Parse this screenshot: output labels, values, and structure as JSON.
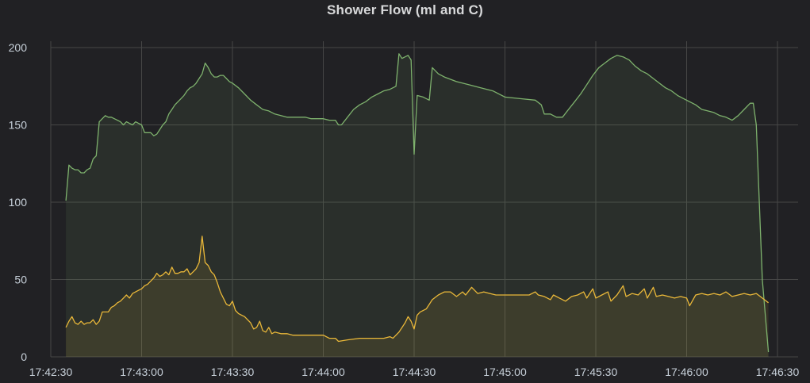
{
  "panel": {
    "title": "Shower Flow (ml and C)"
  },
  "colors": {
    "background": "#212124",
    "grid": "#464646",
    "tick_text": "#c7d0d9",
    "series_flow": "#7eb26d",
    "series_temp": "#eab839"
  },
  "chart_data": {
    "type": "area",
    "title": "Shower Flow (ml and C)",
    "xlabel": "",
    "ylabel": "",
    "ylim": [
      0,
      200
    ],
    "xlim": [
      "17:42:30",
      "17:46:30"
    ],
    "grid": true,
    "legend": "none",
    "x_ticks": [
      "17:42:30",
      "17:43:00",
      "17:43:30",
      "17:44:00",
      "17:44:30",
      "17:45:00",
      "17:45:30",
      "17:46:00",
      "17:46:30"
    ],
    "y_ticks": [
      0,
      50,
      100,
      150,
      200
    ],
    "series": [
      {
        "color": "#7eb26d",
        "points": [
          [
            "17:42:35",
            101
          ],
          [
            "17:42:36",
            124
          ],
          [
            "17:42:37",
            122
          ],
          [
            "17:42:38",
            121
          ],
          [
            "17:42:39",
            121
          ],
          [
            "17:42:40",
            119
          ],
          [
            "17:42:41",
            119
          ],
          [
            "17:42:42",
            121
          ],
          [
            "17:42:43",
            122
          ],
          [
            "17:42:44",
            128
          ],
          [
            "17:42:45",
            130
          ],
          [
            "17:42:46",
            152
          ],
          [
            "17:42:47",
            154
          ],
          [
            "17:42:48",
            156
          ],
          [
            "17:42:49",
            155
          ],
          [
            "17:42:50",
            155
          ],
          [
            "17:42:51",
            154
          ],
          [
            "17:42:52",
            153
          ],
          [
            "17:42:53",
            152
          ],
          [
            "17:42:54",
            150
          ],
          [
            "17:42:55",
            152
          ],
          [
            "17:42:56",
            151
          ],
          [
            "17:42:57",
            150
          ],
          [
            "17:42:58",
            152
          ],
          [
            "17:42:59",
            151
          ],
          [
            "17:43:00",
            150
          ],
          [
            "17:43:01",
            145
          ],
          [
            "17:43:02",
            145
          ],
          [
            "17:43:03",
            145
          ],
          [
            "17:43:04",
            143
          ],
          [
            "17:43:05",
            144
          ],
          [
            "17:43:06",
            147
          ],
          [
            "17:43:07",
            150
          ],
          [
            "17:43:08",
            152
          ],
          [
            "17:43:09",
            157
          ],
          [
            "17:43:10",
            160
          ],
          [
            "17:43:11",
            163
          ],
          [
            "17:43:12",
            165
          ],
          [
            "17:43:13",
            167
          ],
          [
            "17:43:14",
            169
          ],
          [
            "17:43:15",
            172
          ],
          [
            "17:43:16",
            174
          ],
          [
            "17:43:17",
            175
          ],
          [
            "17:43:18",
            177
          ],
          [
            "17:43:19",
            180
          ],
          [
            "17:43:20",
            183
          ],
          [
            "17:43:21",
            190
          ],
          [
            "17:43:22",
            187
          ],
          [
            "17:43:23",
            183
          ],
          [
            "17:43:24",
            181
          ],
          [
            "17:43:25",
            181
          ],
          [
            "17:43:26",
            182
          ],
          [
            "17:43:27",
            182
          ],
          [
            "17:43:28",
            180
          ],
          [
            "17:43:29",
            178
          ],
          [
            "17:43:30",
            177
          ],
          [
            "17:43:32",
            174
          ],
          [
            "17:43:34",
            170
          ],
          [
            "17:43:36",
            166
          ],
          [
            "17:43:38",
            163
          ],
          [
            "17:43:40",
            160
          ],
          [
            "17:43:42",
            159
          ],
          [
            "17:43:44",
            157
          ],
          [
            "17:43:46",
            156
          ],
          [
            "17:43:48",
            155
          ],
          [
            "17:43:50",
            155
          ],
          [
            "17:43:52",
            155
          ],
          [
            "17:43:54",
            155
          ],
          [
            "17:43:56",
            154
          ],
          [
            "17:43:58",
            154
          ],
          [
            "17:44:00",
            154
          ],
          [
            "17:44:02",
            153
          ],
          [
            "17:44:04",
            153
          ],
          [
            "17:44:05",
            150
          ],
          [
            "17:44:06",
            150
          ],
          [
            "17:44:08",
            155
          ],
          [
            "17:44:10",
            160
          ],
          [
            "17:44:12",
            163
          ],
          [
            "17:44:14",
            165
          ],
          [
            "17:44:16",
            168
          ],
          [
            "17:44:18",
            170
          ],
          [
            "17:44:20",
            172
          ],
          [
            "17:44:22",
            173
          ],
          [
            "17:44:24",
            175
          ],
          [
            "17:44:25",
            196
          ],
          [
            "17:44:26",
            193
          ],
          [
            "17:44:27",
            194
          ],
          [
            "17:44:28",
            195
          ],
          [
            "17:44:29",
            192
          ],
          [
            "17:44:30",
            131
          ],
          [
            "17:44:31",
            169
          ],
          [
            "17:44:33",
            168
          ],
          [
            "17:44:35",
            166
          ],
          [
            "17:44:36",
            187
          ],
          [
            "17:44:38",
            183
          ],
          [
            "17:44:40",
            181
          ],
          [
            "17:44:44",
            178
          ],
          [
            "17:44:48",
            176
          ],
          [
            "17:44:52",
            174
          ],
          [
            "17:44:56",
            172
          ],
          [
            "17:45:00",
            168
          ],
          [
            "17:45:05",
            167
          ],
          [
            "17:45:10",
            166
          ],
          [
            "17:45:12",
            163
          ],
          [
            "17:45:13",
            157
          ],
          [
            "17:45:15",
            157
          ],
          [
            "17:45:17",
            155
          ],
          [
            "17:45:19",
            155
          ],
          [
            "17:45:21",
            160
          ],
          [
            "17:45:23",
            165
          ],
          [
            "17:45:25",
            170
          ],
          [
            "17:45:27",
            176
          ],
          [
            "17:45:29",
            182
          ],
          [
            "17:45:31",
            187
          ],
          [
            "17:45:33",
            190
          ],
          [
            "17:45:35",
            193
          ],
          [
            "17:45:37",
            195
          ],
          [
            "17:45:39",
            194
          ],
          [
            "17:45:41",
            192
          ],
          [
            "17:45:43",
            188
          ],
          [
            "17:45:45",
            185
          ],
          [
            "17:45:47",
            183
          ],
          [
            "17:45:49",
            180
          ],
          [
            "17:45:51",
            177
          ],
          [
            "17:45:53",
            174
          ],
          [
            "17:45:55",
            172
          ],
          [
            "17:45:57",
            169
          ],
          [
            "17:45:59",
            167
          ],
          [
            "17:46:01",
            165
          ],
          [
            "17:46:03",
            163
          ],
          [
            "17:46:05",
            160
          ],
          [
            "17:46:07",
            159
          ],
          [
            "17:46:09",
            158
          ],
          [
            "17:46:11",
            156
          ],
          [
            "17:46:13",
            155
          ],
          [
            "17:46:15",
            153
          ],
          [
            "17:46:17",
            156
          ],
          [
            "17:46:19",
            160
          ],
          [
            "17:46:21",
            164
          ],
          [
            "17:46:22",
            164
          ],
          [
            "17:46:23",
            150
          ],
          [
            "17:46:25",
            50
          ],
          [
            "17:46:27",
            3
          ]
        ]
      },
      {
        "color": "#eab839",
        "points": [
          [
            "17:42:35",
            19
          ],
          [
            "17:42:36",
            23
          ],
          [
            "17:42:37",
            26
          ],
          [
            "17:42:38",
            22
          ],
          [
            "17:42:39",
            21
          ],
          [
            "17:42:40",
            23
          ],
          [
            "17:42:41",
            21
          ],
          [
            "17:42:42",
            22
          ],
          [
            "17:42:43",
            22
          ],
          [
            "17:42:44",
            24
          ],
          [
            "17:42:45",
            21
          ],
          [
            "17:42:46",
            23
          ],
          [
            "17:42:47",
            29
          ],
          [
            "17:42:48",
            29
          ],
          [
            "17:42:49",
            29
          ],
          [
            "17:42:50",
            32
          ],
          [
            "17:42:51",
            33
          ],
          [
            "17:42:52",
            35
          ],
          [
            "17:42:53",
            36
          ],
          [
            "17:42:54",
            38
          ],
          [
            "17:42:55",
            40
          ],
          [
            "17:42:56",
            38
          ],
          [
            "17:42:57",
            41
          ],
          [
            "17:42:58",
            42
          ],
          [
            "17:42:59",
            43
          ],
          [
            "17:43:00",
            44
          ],
          [
            "17:43:01",
            46
          ],
          [
            "17:43:02",
            47
          ],
          [
            "17:43:03",
            49
          ],
          [
            "17:43:04",
            51
          ],
          [
            "17:43:05",
            54
          ],
          [
            "17:43:06",
            52
          ],
          [
            "17:43:07",
            53
          ],
          [
            "17:43:08",
            55
          ],
          [
            "17:43:09",
            53
          ],
          [
            "17:43:10",
            58
          ],
          [
            "17:43:11",
            54
          ],
          [
            "17:43:12",
            54
          ],
          [
            "17:43:13",
            55
          ],
          [
            "17:43:14",
            55
          ],
          [
            "17:43:15",
            57
          ],
          [
            "17:43:16",
            53
          ],
          [
            "17:43:17",
            55
          ],
          [
            "17:43:18",
            57
          ],
          [
            "17:43:19",
            61
          ],
          [
            "17:43:20",
            78
          ],
          [
            "17:43:21",
            61
          ],
          [
            "17:43:22",
            59
          ],
          [
            "17:43:23",
            55
          ],
          [
            "17:43:24",
            53
          ],
          [
            "17:43:25",
            48
          ],
          [
            "17:43:26",
            42
          ],
          [
            "17:43:27",
            38
          ],
          [
            "17:43:28",
            34
          ],
          [
            "17:43:29",
            33
          ],
          [
            "17:43:30",
            36
          ],
          [
            "17:43:31",
            30
          ],
          [
            "17:43:32",
            28
          ],
          [
            "17:43:33",
            27
          ],
          [
            "17:43:34",
            26
          ],
          [
            "17:43:35",
            24
          ],
          [
            "17:43:36",
            22
          ],
          [
            "17:43:37",
            18
          ],
          [
            "17:43:38",
            19
          ],
          [
            "17:43:39",
            23
          ],
          [
            "17:43:40",
            17
          ],
          [
            "17:43:41",
            16
          ],
          [
            "17:43:42",
            19
          ],
          [
            "17:43:43",
            15
          ],
          [
            "17:43:44",
            16
          ],
          [
            "17:43:46",
            15
          ],
          [
            "17:43:48",
            15
          ],
          [
            "17:43:50",
            14
          ],
          [
            "17:43:55",
            14
          ],
          [
            "17:44:00",
            14
          ],
          [
            "17:44:02",
            12
          ],
          [
            "17:44:04",
            12
          ],
          [
            "17:44:05",
            10
          ],
          [
            "17:44:08",
            11
          ],
          [
            "17:44:12",
            12
          ],
          [
            "17:44:16",
            12
          ],
          [
            "17:44:20",
            12
          ],
          [
            "17:44:22",
            13
          ],
          [
            "17:44:23",
            12
          ],
          [
            "17:44:25",
            16
          ],
          [
            "17:44:27",
            22
          ],
          [
            "17:44:28",
            26
          ],
          [
            "17:44:29",
            23
          ],
          [
            "17:44:30",
            18
          ],
          [
            "17:44:31",
            27
          ],
          [
            "17:44:32",
            29
          ],
          [
            "17:44:34",
            31
          ],
          [
            "17:44:36",
            37
          ],
          [
            "17:44:38",
            40
          ],
          [
            "17:44:40",
            42
          ],
          [
            "17:44:42",
            42
          ],
          [
            "17:44:44",
            39
          ],
          [
            "17:44:46",
            42
          ],
          [
            "17:44:47",
            40
          ],
          [
            "17:44:49",
            45
          ],
          [
            "17:44:51",
            41
          ],
          [
            "17:44:53",
            42
          ],
          [
            "17:44:55",
            41
          ],
          [
            "17:44:57",
            40
          ],
          [
            "17:45:00",
            40
          ],
          [
            "17:45:04",
            40
          ],
          [
            "17:45:08",
            40
          ],
          [
            "17:45:10",
            42
          ],
          [
            "17:45:11",
            40
          ],
          [
            "17:45:13",
            39
          ],
          [
            "17:45:15",
            37
          ],
          [
            "17:45:16",
            40
          ],
          [
            "17:45:18",
            38
          ],
          [
            "17:45:20",
            36
          ],
          [
            "17:45:22",
            39
          ],
          [
            "17:45:24",
            40
          ],
          [
            "17:45:26",
            42
          ],
          [
            "17:45:27",
            38
          ],
          [
            "17:45:29",
            44
          ],
          [
            "17:45:30",
            38
          ],
          [
            "17:45:32",
            40
          ],
          [
            "17:45:34",
            42
          ],
          [
            "17:45:35",
            36
          ],
          [
            "17:45:37",
            40
          ],
          [
            "17:45:39",
            46
          ],
          [
            "17:45:40",
            39
          ],
          [
            "17:45:42",
            41
          ],
          [
            "17:45:44",
            40
          ],
          [
            "17:45:46",
            44
          ],
          [
            "17:45:47",
            38
          ],
          [
            "17:45:49",
            45
          ],
          [
            "17:45:50",
            39
          ],
          [
            "17:45:52",
            40
          ],
          [
            "17:45:54",
            39
          ],
          [
            "17:45:56",
            38
          ],
          [
            "17:45:58",
            39
          ],
          [
            "17:46:00",
            38
          ],
          [
            "17:46:01",
            33
          ],
          [
            "17:46:03",
            40
          ],
          [
            "17:46:05",
            41
          ],
          [
            "17:46:07",
            40
          ],
          [
            "17:46:09",
            41
          ],
          [
            "17:46:11",
            40
          ],
          [
            "17:46:13",
            42
          ],
          [
            "17:46:15",
            39
          ],
          [
            "17:46:17",
            40
          ],
          [
            "17:46:19",
            41
          ],
          [
            "17:46:21",
            40
          ],
          [
            "17:46:23",
            41
          ],
          [
            "17:46:25",
            38
          ],
          [
            "17:46:27",
            35
          ]
        ]
      }
    ]
  }
}
